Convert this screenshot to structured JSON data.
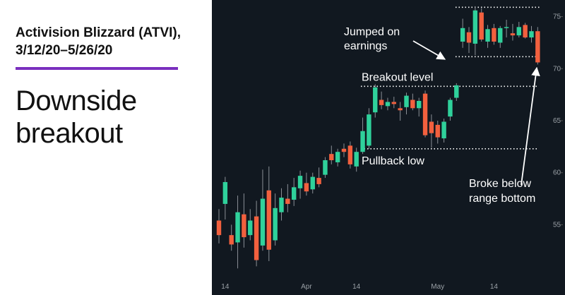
{
  "chart_data": {
    "type": "candlestick",
    "title": [
      "Activision Blizzard (ATVI),",
      "3/12/20–5/26/20"
    ],
    "headline": [
      "Downside",
      "breakout"
    ],
    "categories": [
      null,
      "14",
      null,
      null,
      null,
      null,
      null,
      null,
      null,
      null,
      null,
      null,
      null,
      null,
      "Apr",
      null,
      null,
      null,
      null,
      null,
      null,
      null,
      "14",
      null,
      null,
      null,
      null,
      null,
      null,
      null,
      null,
      null,
      null,
      null,
      null,
      "May",
      null,
      null,
      null,
      null,
      null,
      null,
      null,
      null,
      "14",
      null,
      null,
      null,
      null,
      null,
      null,
      null
    ],
    "open": [
      55.4,
      57.0,
      54.0,
      53.3,
      56.0,
      54.0,
      55.8,
      53.0,
      58.3,
      53.5,
      56.2,
      57.5,
      57.4,
      58.5,
      59.0,
      58.4,
      59.5,
      59.8,
      61.8,
      61.0,
      62.3,
      62.6,
      60.6,
      62.0,
      62.6,
      65.8,
      67.0,
      66.4,
      66.8,
      66.2,
      66.3,
      67.0,
      66.2,
      67.6,
      64.9,
      64.6,
      63.3,
      65.4,
      67.2,
      72.6,
      73.5,
      72.4,
      75.4,
      72.6,
      73.9,
      72.5,
      73.9,
      73.4,
      73.2,
      74.2,
      73.0,
      73.6
    ],
    "high": [
      56.5,
      59.6,
      55.0,
      57.8,
      58.0,
      56.5,
      57.3,
      60.3,
      60.6,
      58.0,
      58.5,
      58.9,
      59.5,
      60.2,
      60.0,
      60.0,
      60.5,
      61.5,
      62.6,
      62.3,
      62.8,
      63.0,
      62.4,
      65.3,
      66.2,
      68.5,
      67.8,
      67.2,
      67.3,
      66.8,
      67.7,
      67.6,
      67.2,
      67.9,
      65.6,
      65.0,
      65.2,
      67.2,
      68.6,
      74.8,
      74.0,
      76.0,
      75.8,
      74.2,
      74.3,
      74.1,
      74.7,
      74.3,
      74.5,
      74.4,
      74.1,
      74.0
    ],
    "low": [
      53.2,
      55.5,
      52.5,
      50.8,
      52.8,
      53.5,
      51.0,
      52.5,
      51.5,
      53.0,
      55.4,
      56.2,
      56.8,
      57.5,
      57.8,
      58.0,
      58.6,
      59.5,
      60.8,
      60.6,
      61.5,
      60.4,
      60.1,
      61.8,
      62.3,
      65.3,
      66.1,
      66.0,
      66.2,
      65.0,
      65.6,
      66.0,
      65.4,
      63.4,
      62.4,
      62.8,
      62.9,
      65.0,
      66.9,
      72.0,
      71.5,
      71.3,
      72.6,
      72.0,
      72.3,
      72.0,
      73.0,
      72.7,
      73.0,
      72.9,
      72.5,
      70.4
    ],
    "close": [
      54.0,
      59.1,
      53.1,
      56.2,
      53.8,
      55.4,
      51.6,
      57.5,
      52.6,
      56.6,
      57.6,
      57.0,
      58.6,
      59.7,
      58.2,
      59.6,
      58.9,
      61.2,
      61.2,
      62.0,
      62.0,
      60.8,
      62.0,
      64.0,
      65.6,
      68.2,
      66.5,
      66.8,
      66.6,
      66.0,
      67.4,
      66.2,
      66.9,
      63.6,
      63.8,
      63.4,
      64.9,
      67.0,
      68.4,
      73.9,
      72.5,
      75.6,
      72.8,
      73.8,
      72.6,
      73.9,
      74.0,
      73.2,
      74.0,
      73.0,
      73.6,
      70.6
    ],
    "up_color": "#2fd19b",
    "down_color": "#f2603e",
    "ylim": [
      49.6,
      76.6
    ],
    "yticks": [
      55,
      60,
      65,
      70,
      75
    ],
    "levels": [
      {
        "label": "Breakout level",
        "value": 68.3
      },
      {
        "label": "Pullback low",
        "value": 62.3
      }
    ],
    "range": [
      71.15,
      75.9
    ],
    "annotations": [
      {
        "lines": [
          "Jumped on",
          "earnings"
        ]
      },
      {
        "lines": [
          "Broke below",
          "range bottom"
        ]
      }
    ]
  }
}
